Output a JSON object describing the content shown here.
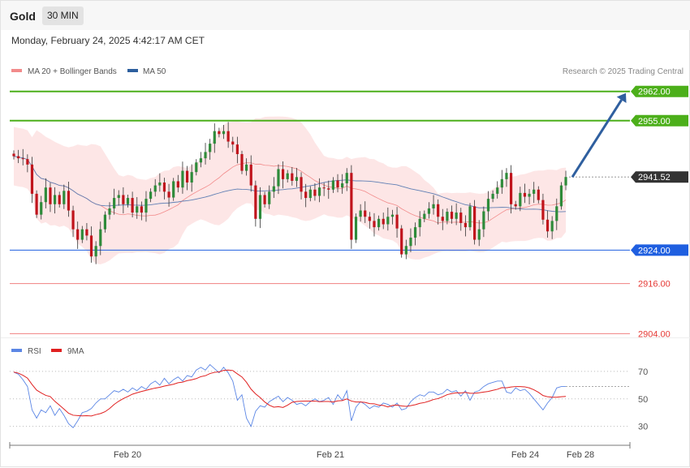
{
  "header": {
    "title": "Gold",
    "timeframe": "30 MIN",
    "datetime": "Monday, February 24, 2025 4:42:17 AM CET"
  },
  "legend": {
    "main": [
      {
        "label": "MA 20 + Bollinger Bands",
        "color": "#f28b8b"
      },
      {
        "label": "MA 50",
        "color": "#2d5f9e"
      }
    ],
    "rsi": [
      {
        "label": "RSI",
        "color": "#5b86e5"
      },
      {
        "label": "9MA",
        "color": "#e02020"
      }
    ],
    "credit": "Research © 2025 Trading Central"
  },
  "chart_data": {
    "type": "candlestick",
    "price_axis": {
      "min": 2903.5,
      "max": 2967
    },
    "levels": [
      {
        "value": 2962.0,
        "label": "2962.00",
        "style": "resistance",
        "color": "#4caf1a"
      },
      {
        "value": 2955.0,
        "label": "2955.00",
        "style": "resistance",
        "color": "#4caf1a"
      },
      {
        "value": 2941.52,
        "label": "2941.52",
        "style": "last-price",
        "color": "#333333"
      },
      {
        "value": 2924.0,
        "label": "2924.00",
        "style": "pivot",
        "color": "#1f5fe0"
      },
      {
        "value": 2916.0,
        "label": "2916.00",
        "style": "support",
        "color": "#e53935"
      },
      {
        "value": 2904.0,
        "label": "2904.00",
        "style": "support",
        "color": "#e53935"
      }
    ],
    "target_arrow": {
      "from": 2941.5,
      "to": 2962.0
    },
    "x_labels": [
      "Feb 20",
      "Feb 21",
      "Feb 24",
      "Feb 28"
    ],
    "rsi_levels": [
      {
        "value": 70,
        "label": "70"
      },
      {
        "value": 50,
        "label": "50"
      },
      {
        "value": 30,
        "label": "30"
      }
    ],
    "closes": [
      2946.5,
      2946,
      2945.8,
      2944.5,
      2937.5,
      2932.5,
      2935.5,
      2939,
      2935,
      2937.2,
      2935,
      2938.2,
      2933.5,
      2929,
      2926.5,
      2929,
      2927.5,
      2922.5,
      2925,
      2929,
      2932.5,
      2934,
      2936.5,
      2937.2,
      2935,
      2936.5,
      2933,
      2934.5,
      2933,
      2936.3,
      2938,
      2939.5,
      2940.2,
      2938,
      2936.6,
      2940.5,
      2939,
      2943,
      2940.2,
      2942.7,
      2945,
      2946,
      2947.5,
      2949.5,
      2952.5,
      2951.8,
      2952.5,
      2950,
      2949.3,
      2947,
      2943,
      2944.5,
      2939.5,
      2931.5,
      2937.2,
      2935,
      2938,
      2939.3,
      2943.4,
      2941,
      2942.4,
      2940.6,
      2941.5,
      2938,
      2936.5,
      2938.5,
      2937,
      2939,
      2938.8,
      2938.5,
      2940.7,
      2939,
      2940,
      2942.5,
      2926.5,
      2932,
      2933.5,
      2932,
      2931,
      2929.5,
      2931.5,
      2930.2,
      2932,
      2932.5,
      2929.2,
      2923,
      2925,
      2927,
      2929.5,
      2931.5,
      2932.7,
      2934,
      2935,
      2932,
      2931,
      2933.2,
      2931.5,
      2933,
      2930.5,
      2929.5,
      2934.5,
      2926.5,
      2929,
      2933.3,
      2936.3,
      2937.5,
      2939,
      2941,
      2942.5,
      2935,
      2934.5,
      2937.7,
      2936.8,
      2937.5,
      2938.5,
      2936,
      2931.3,
      2928.5,
      2931,
      2934.5,
      2939.5,
      2941.52
    ],
    "rsi": [
      69.5,
      68,
      64,
      59,
      42,
      36,
      42,
      40,
      45,
      38,
      43,
      38,
      32,
      29,
      34,
      40,
      41,
      43,
      47,
      50,
      50,
      53,
      56,
      55,
      57,
      55,
      58,
      56,
      59,
      57,
      61,
      63,
      60,
      65,
      61,
      64,
      66,
      63,
      67,
      66,
      71,
      73,
      71,
      75,
      72,
      69,
      73,
      69,
      63,
      49,
      53,
      36,
      30,
      41,
      45,
      44,
      48,
      50,
      52,
      48,
      51,
      49,
      46,
      47,
      45,
      48,
      50,
      48,
      49,
      51,
      46,
      53,
      49,
      56,
      34,
      44,
      48,
      46,
      43,
      45,
      44,
      47,
      46,
      44,
      47,
      42,
      43,
      48,
      51,
      53,
      52,
      55,
      55,
      53,
      54,
      57,
      55,
      56,
      52,
      56,
      49,
      55,
      56,
      59,
      61,
      62,
      63,
      63,
      55,
      54,
      58,
      56,
      57,
      54,
      50,
      46,
      42,
      47,
      51,
      58,
      59,
      59
    ]
  }
}
